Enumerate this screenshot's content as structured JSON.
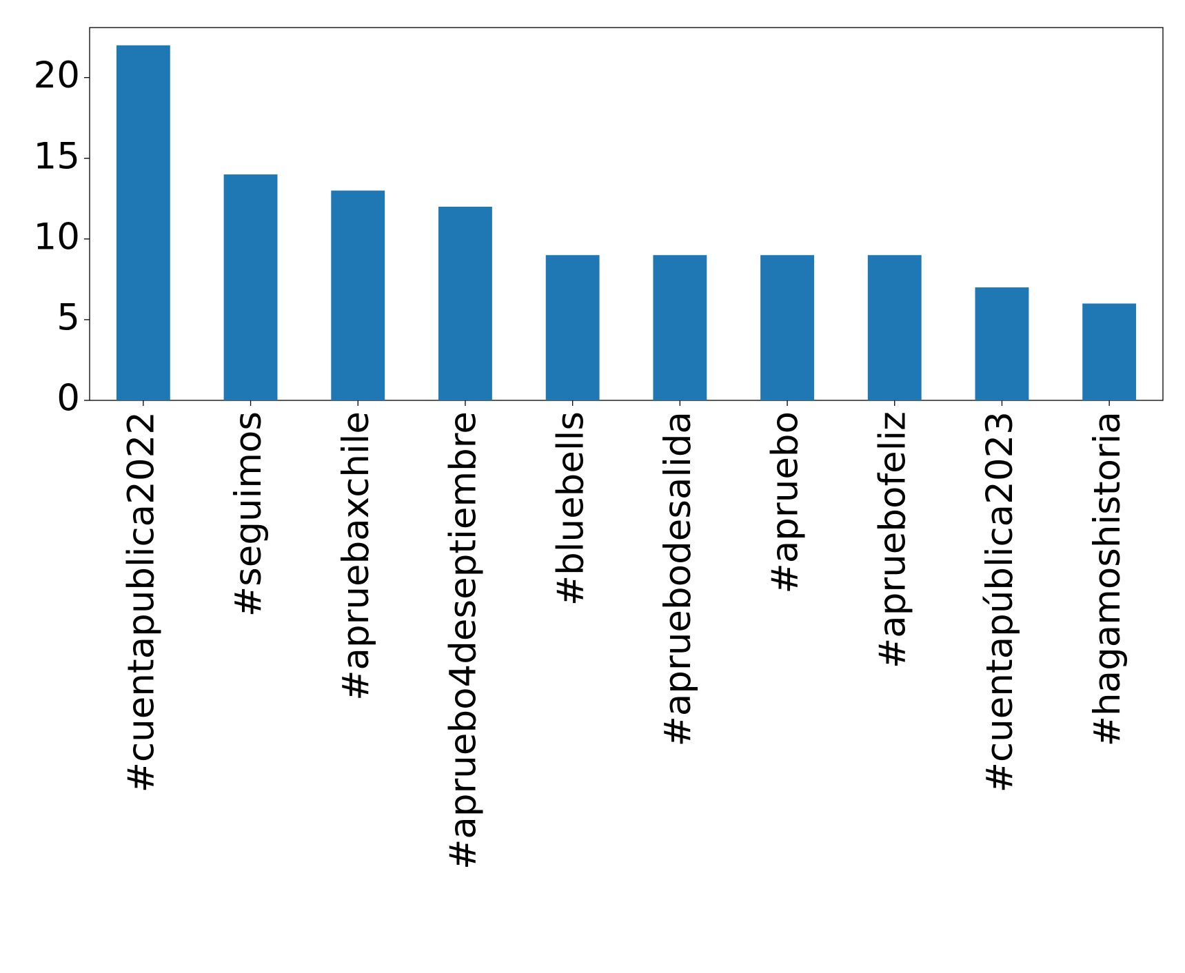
{
  "chart_data": {
    "type": "bar",
    "categories": [
      "#cuentapublica2022",
      "#seguimos",
      "#apruebaxchile",
      "#apruebo4deseptiembre",
      "#bluebells",
      "#apruebodesalida",
      "#apruebo",
      "#apruebofeliz",
      "#cuentapública2023",
      "#hagamoshistoria"
    ],
    "values": [
      22,
      14,
      13,
      12,
      9,
      9,
      9,
      9,
      7,
      6
    ],
    "color": "#1f77b4",
    "ylim": [
      0,
      23.1
    ],
    "yticks": [
      0,
      5,
      10,
      15,
      20
    ],
    "grid": false
  }
}
